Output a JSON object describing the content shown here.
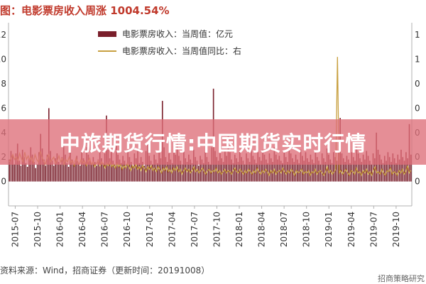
{
  "title": "图：电影票房收入周涨 1004.54%",
  "banner": "中旅期货行情:中国期货实时行情",
  "footer": "资料来源：Wind，招商证券（更新时间：20191008）",
  "watermark": "招商策略研究",
  "colors": {
    "bar": "#7a1f2b",
    "line": "#c8a040",
    "axis": "#b0b0b0",
    "text": "#333333"
  },
  "chart_data": {
    "type": "bar",
    "legend_position": "top-center",
    "legend": [
      "电影票房收入：当周值：亿元",
      "电影票房收入：当周值同比：右"
    ],
    "x_tick_labels": [
      "2015-07",
      "2015-10",
      "2016-01",
      "2016-04",
      "2016-07",
      "2016-10",
      "2017-01",
      "2017-04",
      "2017-07",
      "2017-10",
      "2018-01",
      "2018-04",
      "2018-07",
      "2018-10",
      "2019-01",
      "2019-04",
      "2019-07",
      "2019-10"
    ],
    "left_axis": {
      "ticks": [
        "12",
        "10",
        "8",
        "6",
        "4",
        "2",
        "0"
      ],
      "ylim": [
        -2,
        13
      ]
    },
    "right_axis": {
      "ticks": [
        "1",
        "1",
        "0",
        "0",
        "0",
        "0",
        "0"
      ],
      "ylim": [
        -2,
        13
      ]
    },
    "series": [
      {
        "name": "电影票房收入：当周值：亿元",
        "type": "bar",
        "values": [
          1.8,
          2.5,
          2.1,
          1.4,
          2.3,
          3.1,
          1.7,
          1.3,
          2.6,
          2.0,
          1.5,
          1.2,
          1.9,
          2.8,
          2.2,
          1.6,
          1.1,
          1.4,
          2.4,
          3.9,
          2.7,
          1.8,
          1.3,
          2.2,
          6.0,
          2.5,
          1.7,
          1.3,
          1.9,
          2.3,
          1.6,
          1.4,
          2.0,
          3.1,
          2.2,
          1.5,
          1.2,
          2.6,
          1.8,
          1.4,
          1.7,
          2.1,
          1.5,
          1.3,
          2.4,
          1.9,
          1.6,
          2.8,
          2.2,
          1.7,
          1.4,
          2.0,
          1.6,
          1.3,
          1.8,
          2.5,
          1.9,
          1.5,
          2.3,
          5.4,
          2.6,
          1.9,
          2.4,
          1.7,
          1.4,
          2.9,
          2.2,
          1.8,
          1.5,
          2.1,
          1.7,
          1.4,
          2.6,
          2.0,
          1.6,
          1.3,
          2.3,
          1.9,
          2.7,
          1.5,
          2.0,
          1.6,
          1.3,
          2.5,
          3.3,
          2.1,
          1.7,
          1.4,
          2.2,
          1.8,
          1.5,
          2.4,
          1.9,
          6.6,
          2.8,
          2.0,
          1.6,
          2.3,
          1.8,
          1.5,
          2.9,
          2.2,
          3.8,
          2.1,
          1.7,
          1.4,
          2.5,
          1.9,
          1.6,
          2.2,
          1.8,
          1.5,
          2.6,
          2.0,
          1.7,
          1.3,
          2.1,
          1.8,
          1.5,
          2.4,
          2.0,
          1.6,
          1.4,
          2.8,
          7.6,
          2.5,
          2.0,
          1.7,
          2.3,
          1.9,
          1.6,
          2.6,
          2.1,
          3.7,
          2.4,
          1.8,
          1.5,
          2.2,
          1.9,
          1.6,
          2.5,
          2.0,
          1.7,
          1.4,
          2.3,
          1.9,
          1.6,
          2.7,
          2.1,
          1.8,
          1.5,
          2.4,
          2.0,
          1.7,
          2.6,
          2.2,
          1.8,
          1.5,
          2.3,
          1.9,
          1.6,
          2.8,
          2.2,
          1.8,
          2.1,
          1.7,
          1.5,
          2.4,
          2.0,
          1.6,
          2.9,
          2.3,
          1.9,
          1.6,
          2.2,
          1.8,
          1.5,
          2.6,
          2.1,
          1.7,
          2.4,
          1.9,
          1.6,
          2.2,
          1.8,
          1.5,
          2.5,
          2.0,
          1.7,
          1.4,
          2.3,
          1.9,
          1.6,
          2.7,
          2.2,
          1.8,
          1.5,
          2.4,
          2.0,
          1.7,
          2.6,
          5.2,
          2.3,
          1.9,
          1.6,
          2.1,
          1.8,
          1.5,
          2.4,
          2.0,
          1.7,
          2.9,
          2.3,
          1.9,
          1.6,
          2.2,
          1.8,
          2.5,
          2.1,
          1.7,
          1.4,
          2.3,
          1.9,
          4.0,
          2.6,
          2.2,
          1.8,
          1.5,
          2.1,
          1.7,
          2.4,
          2.0,
          1.6,
          2.3,
          1.9,
          1.5,
          2.2,
          1.8,
          2.6,
          2.0,
          1.7,
          2.4,
          1.9,
          4.7,
          2.2
        ]
      },
      {
        "name": "电影票房收入：当周值同比：右",
        "type": "line",
        "values": [
          1.6,
          1.9,
          2.2,
          1.8,
          2.0,
          1.7,
          2.3,
          1.9,
          1.6,
          2.4,
          1.8,
          2.1,
          1.7,
          2.0,
          1.5,
          2.2,
          1.8,
          1.6,
          2.5,
          2.0,
          1.7,
          1.4,
          1.9,
          2.2,
          1.6,
          1.8,
          2.0,
          1.5,
          1.7,
          2.1,
          1.6,
          1.9,
          1.4,
          1.8,
          1.6,
          2.0,
          1.5,
          1.7,
          1.3,
          1.9,
          1.6,
          1.4,
          1.8,
          1.5,
          1.7,
          1.3,
          1.6,
          1.9,
          1.4,
          1.6,
          1.2,
          1.5,
          1.7,
          1.3,
          1.6,
          1.4,
          1.1,
          1.5,
          1.3,
          1.6,
          1.2,
          1.4,
          1.1,
          1.5,
          1.2,
          1.4,
          1.0,
          1.3,
          1.1,
          1.5,
          1.2,
          0.9,
          1.3,
          1.1,
          1.4,
          1.0,
          1.2,
          0.9,
          1.3,
          1.1,
          0.8,
          1.2,
          1.0,
          1.3,
          0.9,
          1.1,
          0.8,
          1.2,
          1.0,
          0.7,
          1.1,
          0.9,
          1.2,
          0.8,
          1.0,
          0.7,
          1.1,
          0.9,
          1.2,
          0.8,
          1.0,
          0.6,
          0.9,
          1.1,
          0.8,
          1.0,
          0.7,
          0.9,
          1.2,
          0.8,
          1.0,
          0.7,
          0.9,
          1.1,
          0.8,
          0.6,
          0.9,
          1.0,
          0.7,
          0.9,
          0.8,
          1.1,
          0.7,
          0.9,
          0.6,
          0.8,
          1.0,
          0.7,
          0.9,
          0.8,
          0.6,
          0.9,
          1.1,
          0.8,
          0.7,
          1.0,
          0.8,
          0.6,
          0.9,
          0.7,
          1.0,
          0.8,
          0.6,
          0.9,
          0.7,
          1.1,
          0.8,
          0.6,
          0.9,
          0.7,
          1.0,
          0.8,
          0.5,
          0.9,
          0.7,
          1.0,
          0.6,
          0.8,
          0.9,
          0.7,
          1.1,
          0.8,
          0.6,
          0.9,
          0.7,
          1.0,
          0.8,
          0.5,
          0.9,
          0.7,
          0.8,
          1.0,
          0.6,
          0.8,
          0.7,
          0.9,
          0.5,
          0.8,
          0.7,
          1.0,
          0.6,
          0.8,
          0.9,
          0.7,
          0.5,
          0.8,
          1.2,
          0.7,
          0.9,
          0.6,
          0.8,
          1.0,
          10.2,
          0.7,
          0.9,
          0.6,
          0.8,
          1.0,
          0.7,
          0.5,
          0.9,
          0.8,
          0.6,
          1.1,
          0.7,
          0.8,
          0.5,
          0.9,
          0.7,
          1.0,
          0.6,
          0.8,
          0.5,
          0.9,
          1.2,
          0.7,
          0.8,
          0.6,
          1.0,
          0.7,
          0.5,
          0.9,
          0.8,
          1.1,
          0.6,
          0.8,
          0.7,
          0.5,
          0.9,
          0.7,
          1.0,
          0.6,
          0.8,
          1.3,
          0.7,
          0.9
        ]
      }
    ]
  }
}
